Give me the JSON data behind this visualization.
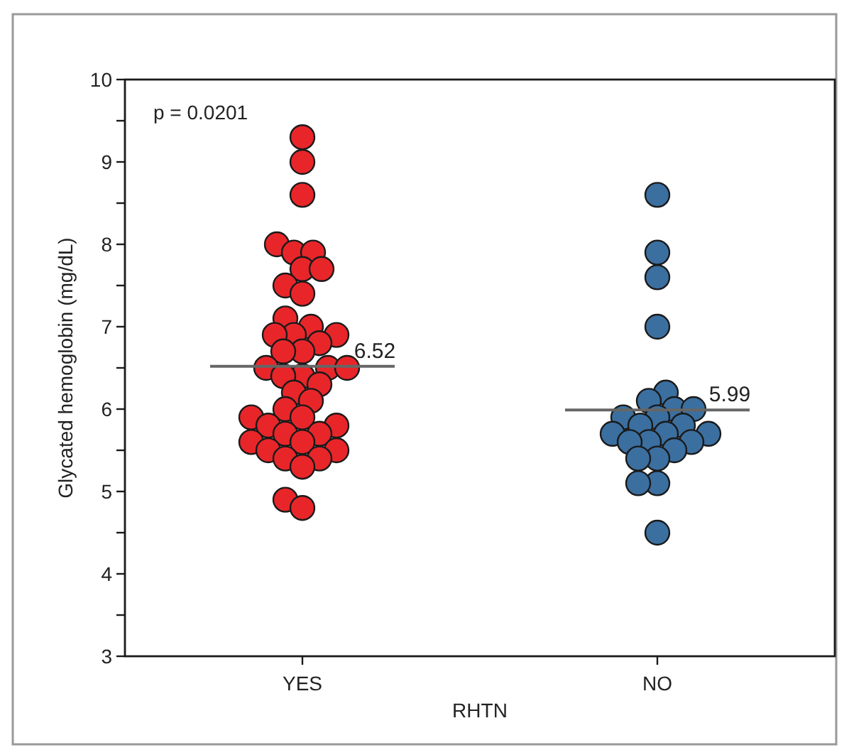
{
  "chart_data": {
    "type": "scatter",
    "xlabel": "RHTN",
    "ylabel": "Glycated hemoglobin (mg/dL)",
    "categories": [
      "YES",
      "NO"
    ],
    "ylim": [
      3,
      10
    ],
    "yticks": [
      3,
      {
        "value": 3.5,
        "label": null
      },
      4,
      {
        "value": 4.5,
        "label": null
      },
      5,
      {
        "value": 5.5,
        "label": null
      },
      6,
      {
        "value": 6.5,
        "label": null
      },
      7,
      {
        "value": 7.5,
        "label": null
      },
      8,
      {
        "value": 8.5,
        "label": null
      },
      9,
      {
        "value": 9.5,
        "label": null
      },
      10
    ],
    "grid": false,
    "marker": "circle",
    "series": [
      {
        "color": "#e8262a",
        "x": [
          "YES",
          "YES",
          "YES",
          "YES",
          "YES",
          "YES",
          "YES",
          "YES",
          "YES",
          "YES",
          "YES",
          "YES",
          "YES",
          "YES",
          "YES",
          "YES",
          "YES",
          "YES",
          "YES",
          "YES",
          "YES",
          "YES",
          "YES",
          "YES",
          "YES",
          "YES",
          "YES",
          "YES",
          "YES",
          "YES",
          "YES",
          "YES",
          "YES",
          "YES",
          "YES",
          "YES",
          "YES",
          "YES",
          "YES",
          "YES",
          "YES",
          "YES"
        ],
        "values": [
          9.3,
          9.0,
          8.6,
          8.0,
          7.9,
          7.9,
          7.7,
          7.7,
          7.5,
          7.4,
          7.1,
          7.0,
          6.9,
          6.9,
          6.9,
          6.8,
          6.7,
          6.7,
          6.5,
          6.5,
          6.5,
          6.4,
          6.4,
          6.3,
          6.2,
          6.1,
          6.0,
          5.9,
          5.9,
          5.8,
          5.8,
          5.7,
          5.7,
          5.6,
          5.6,
          5.5,
          5.5,
          5.4,
          5.4,
          5.3,
          4.9,
          4.8
        ]
      },
      {
        "color": "#3b6fa0",
        "x": [
          "NO",
          "NO",
          "NO",
          "NO",
          "NO",
          "NO",
          "NO",
          "NO",
          "NO",
          "NO",
          "NO",
          "NO",
          "NO",
          "NO",
          "NO",
          "NO",
          "NO",
          "NO",
          "NO",
          "NO",
          "NO",
          "NO",
          "NO",
          "NO"
        ],
        "values": [
          8.6,
          7.9,
          7.6,
          7.0,
          6.2,
          6.1,
          6.0,
          6.0,
          5.9,
          5.9,
          5.8,
          5.8,
          5.7,
          5.7,
          5.7,
          5.6,
          5.6,
          5.6,
          5.5,
          5.4,
          5.4,
          5.1,
          5.1,
          4.5
        ]
      }
    ],
    "annotations": [
      "p = 0.0201",
      {
        "text": "6.52",
        "x": "YES",
        "y": 6.52
      },
      {
        "text": "5.99",
        "x": "NO",
        "y": 5.99
      }
    ]
  }
}
